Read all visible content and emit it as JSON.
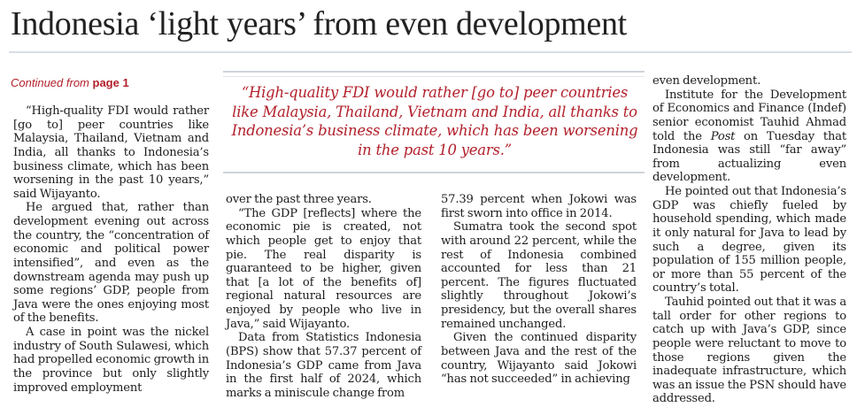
{
  "article": {
    "headline": "Indonesia ‘light years’ from even development",
    "continued_prefix": "Continued from",
    "continued_page": "page 1",
    "pull_quote": "“High-quality FDI would rather [go to] peer countries like Malaysia, Thailand, Vietnam and India, all thanks to Indonesia’s business climate, which has been worsening in the past 10 years.”",
    "col1": [
      "“High-quality FDI would rather [go to] peer countries like Malaysia, Thailand, Vietnam and India, all thanks to Indonesia’s business climate, which has been worsening in the past 10 years,” said Wijayanto.",
      "He argued that, rather than development evening out across the country, the “concentration of economic and political power intensified”, and even as the downstream agenda may push up some regions’ GDP, people from Java were the ones enjoying most of the benefits.",
      "A case in point was the nickel industry of South Sulawesi, which had propelled economic growth in the province but only slightly improved employment"
    ],
    "col2": [
      "over the past three years.",
      "“The GDP [reflects] where the economic pie is created, not which people get to enjoy that pie. The real disparity is guaranteed to be higher, given that [a lot of the benefits of] regional natural resources are enjoyed by people who live in Java,” said Wijayanto.",
      "Data from Statistics Indonesia (BPS) show that 57.37 percent of Indonesia’s GDP came from Java in the first half of 2024, which marks a miniscule change from"
    ],
    "col3": [
      "57.39 percent when Jokowi was first sworn into office in 2014.",
      "Sumatra took the second spot with around 22 percent, while the rest of Indonesia combined accounted for less than 21 percent. The figures fluctuated slightly throughout Jokowi’s presidency, but the overall shares remained unchanged.",
      "Given the continued disparity between Java and the rest of the country, Wijayanto said Jokowi “has not succeeded” in achieving"
    ],
    "col4": {
      "p0": "even development.",
      "p1_before": "Institute for the Development of Economics and Finance (Indef) senior economist Tauhid Ahmad told the ",
      "p1_italic": "Post",
      "p1_after": " on Tuesday that Indonesia was still “far away” from actualizing even development.",
      "p2": "He pointed out that Indonesia’s GDP was chiefly fueled by household spending, which made it only natural for Java to lead by such a degree, given its population of 155 million people, or more than 55 percent of the country’s total.",
      "p3": "Tauhid pointed out that it was a tall order for other regions to catch up with Java’s GDP, since people were reluctant to move to those regions given the inadequate infrastructure, which was an issue the PSN should have addressed."
    }
  }
}
